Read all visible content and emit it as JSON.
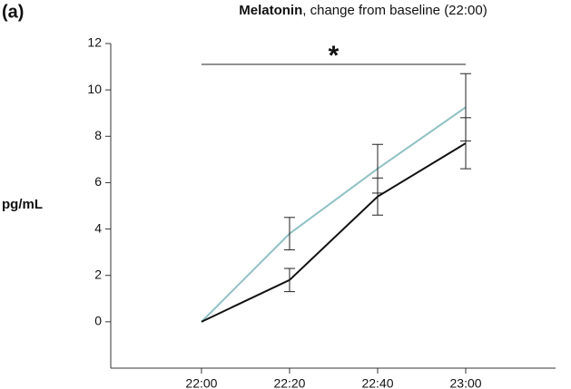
{
  "chart_data": {
    "type": "line",
    "panel_label": "(a)",
    "title": [
      "Melatonin",
      ", change from baseline (22:00)"
    ],
    "y_label": "pg/mL",
    "categories": [
      "22:00",
      "22:20",
      "22:40",
      "23:00"
    ],
    "series": [
      {
        "color": "#8fc1c3",
        "values": [
          0,
          3.8,
          6.6,
          9.25
        ],
        "errors": [
          0,
          0.7,
          1.05,
          1.45
        ]
      },
      {
        "color": "#111111",
        "values": [
          0,
          1.8,
          5.4,
          7.7
        ],
        "errors": [
          0,
          0.5,
          0.8,
          1.1
        ]
      }
    ],
    "annotation": {
      "text": "*",
      "value": 11.1
    },
    "ylim": [
      -2,
      12
    ],
    "yticks": [
      0,
      2,
      4,
      6,
      8,
      10,
      12
    ]
  }
}
